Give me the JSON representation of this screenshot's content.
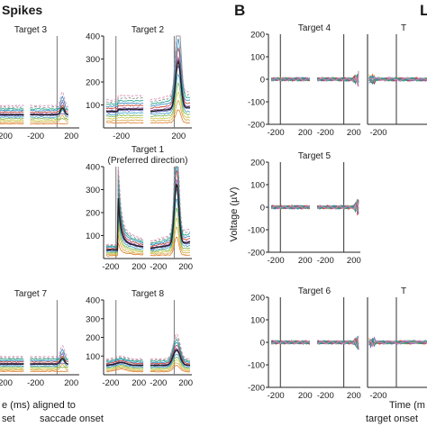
{
  "figure": {
    "panel_a_title": "Spikes",
    "panel_b_letter": "B",
    "panel_b_clipped_letter": "L",
    "xaxis_label_a_line1": "e (ms) aligned to",
    "xaxis_label_a_line2a": "set",
    "xaxis_label_a_line2b": "saccade onset",
    "xaxis_label_b_line1": "Time (m",
    "xaxis_label_b_line2": "target onset",
    "ylabel_b": "Voltage (µV)"
  },
  "colors": {
    "trace_palette": [
      "#e07b2a",
      "#d9a74a",
      "#c9c94a",
      "#7fb24c",
      "#3ea3c7",
      "#5c5fc4",
      "#9b59b6",
      "#c0392b",
      "#2e86c1",
      "#16a085",
      "#888888",
      "#d98cb3"
    ],
    "mean_trace": "#222222",
    "axis": "#222222"
  },
  "chart_data": [
    {
      "id": "target3",
      "type": "line",
      "title": "Target 3",
      "kind": "spikes",
      "ylim": [
        0,
        400
      ],
      "x_ticks": [
        "200",
        "-200",
        "200"
      ],
      "y_ticks": [],
      "peak": "low"
    },
    {
      "id": "target2",
      "type": "line",
      "title": "Target 2",
      "kind": "spikes",
      "ylim": [
        0,
        400
      ],
      "x_ticks": [
        "-200",
        "200"
      ],
      "y_ticks": [
        "400",
        "300",
        "200",
        "100"
      ],
      "peak": "high"
    },
    {
      "id": "target1",
      "type": "line",
      "title": "Target 1",
      "subtitle": "(Preferred direction)",
      "kind": "spikes",
      "ylim": [
        0,
        400
      ],
      "x_ticks": [
        "-200",
        "200",
        "-200",
        "200"
      ],
      "y_ticks": [
        "400",
        "300",
        "200",
        "100"
      ],
      "peak": "pref"
    },
    {
      "id": "target7",
      "type": "line",
      "title": "Target 7",
      "kind": "spikes",
      "ylim": [
        0,
        400
      ],
      "x_ticks": [
        "200",
        "-200",
        "200"
      ],
      "y_ticks": [],
      "peak": "low"
    },
    {
      "id": "target8",
      "type": "line",
      "title": "Target 8",
      "kind": "spikes",
      "ylim": [
        0,
        400
      ],
      "x_ticks": [
        "-200",
        "200",
        "-200",
        "200"
      ],
      "y_ticks": [
        "400",
        "300",
        "200",
        "100"
      ],
      "peak": "mid"
    },
    {
      "id": "target4",
      "type": "line",
      "title": "Target 4",
      "kind": "lfp",
      "ylim": [
        -200,
        200
      ],
      "x_ticks": [
        "-200",
        "200",
        "-200",
        "200"
      ],
      "y_ticks": [
        "200",
        "100",
        "0",
        "-100",
        "-200"
      ]
    },
    {
      "id": "target5",
      "type": "line",
      "title": "Target 5",
      "kind": "lfp",
      "ylim": [
        -200,
        200
      ],
      "x_ticks": [
        "-200",
        "200",
        "-200",
        "200"
      ],
      "y_ticks": [
        "200",
        "100",
        "0",
        "-100",
        "-200"
      ]
    },
    {
      "id": "target6",
      "type": "line",
      "title": "Target 6",
      "kind": "lfp",
      "ylim": [
        -200,
        200
      ],
      "x_ticks": [
        "-200",
        "200",
        "-200",
        "200"
      ],
      "y_ticks": [
        "200",
        "100",
        "0",
        "-100",
        "-200"
      ]
    },
    {
      "id": "clip_top",
      "type": "line",
      "title": "T",
      "kind": "lfp",
      "ylim": [
        -200,
        200
      ],
      "x_ticks": [
        "-200"
      ],
      "y_ticks": []
    },
    {
      "id": "clip_bot",
      "type": "line",
      "title": "T",
      "kind": "lfp",
      "ylim": [
        -200,
        200
      ],
      "x_ticks": [
        "-200"
      ],
      "y_ticks": []
    }
  ]
}
